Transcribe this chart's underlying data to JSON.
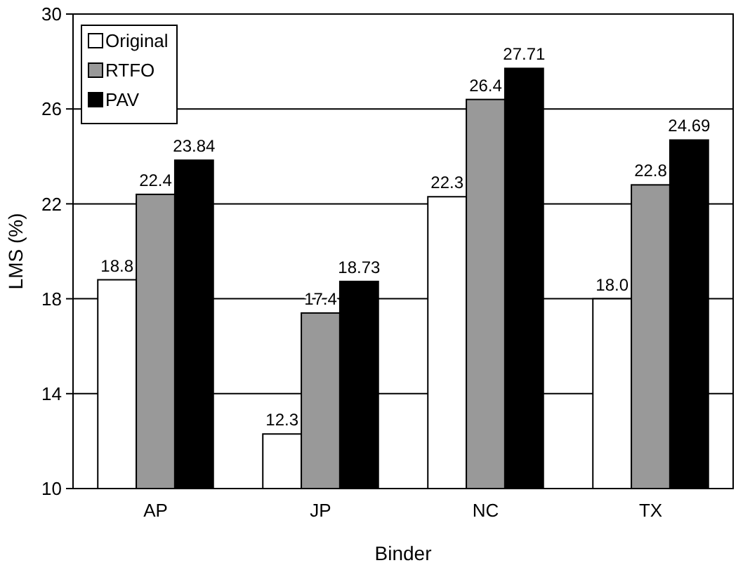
{
  "chart_data": {
    "type": "bar",
    "xlabel": "Binder",
    "ylabel": "LMS (%)",
    "categories": [
      "AP",
      "JP",
      "NC",
      "TX"
    ],
    "ylim": [
      10,
      30
    ],
    "yticks": [
      10,
      14,
      18,
      22,
      26,
      30
    ],
    "grid": "y",
    "legend": "top left",
    "series": [
      {
        "name": "Original",
        "color": "#ffffff",
        "values": [
          18.8,
          12.3,
          22.3,
          18.0
        ],
        "value_labels": [
          "18.8",
          "12.3",
          "22.3",
          "18.0"
        ]
      },
      {
        "name": "RTFO",
        "color": "#999999",
        "values": [
          22.4,
          17.4,
          26.4,
          22.8
        ],
        "value_labels": [
          "22.4",
          "17.4",
          "26.4",
          "22.8"
        ]
      },
      {
        "name": "PAV",
        "color": "#000000",
        "values": [
          23.84,
          18.73,
          27.71,
          24.69
        ],
        "value_labels": [
          "23.84",
          "18.73",
          "27.71",
          "24.69"
        ]
      }
    ]
  }
}
